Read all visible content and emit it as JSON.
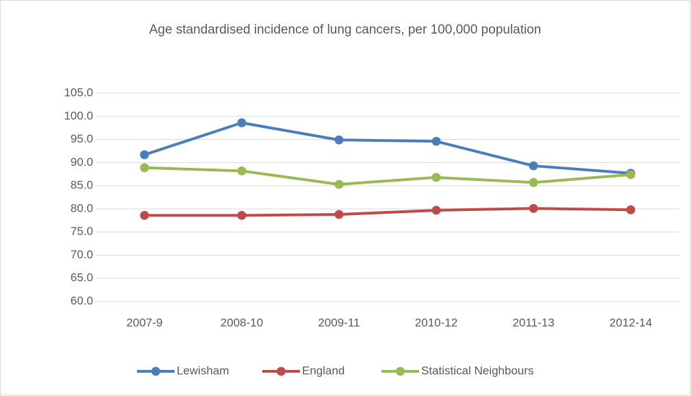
{
  "chart_data": {
    "type": "line",
    "title": "Age standardised incidence of lung cancers, per 100,000 population",
    "categories": [
      "2007-9",
      "2008-10",
      "2009-11",
      "2010-12",
      "2011-13",
      "2012-14"
    ],
    "series": [
      {
        "name": "Lewisham",
        "color": "#4a7ebb",
        "values": [
          91.7,
          98.6,
          94.9,
          94.6,
          89.3,
          87.7
        ]
      },
      {
        "name": "England",
        "color": "#be4b48",
        "values": [
          78.6,
          78.6,
          78.8,
          79.7,
          80.1,
          79.8
        ]
      },
      {
        "name": "Statistical Neighbours",
        "color": "#98b954",
        "values": [
          88.9,
          88.2,
          85.3,
          86.8,
          85.7,
          87.4
        ]
      }
    ],
    "ylim": [
      60,
      105
    ],
    "yticks": [
      {
        "value": 60,
        "label": "60.0"
      },
      {
        "value": 65,
        "label": "65.0"
      },
      {
        "value": 70,
        "label": "70.0"
      },
      {
        "value": 75,
        "label": "75.0"
      },
      {
        "value": 80,
        "label": "80.0"
      },
      {
        "value": 85,
        "label": "85.0"
      },
      {
        "value": 90,
        "label": "90.0"
      },
      {
        "value": 95,
        "label": "95.0"
      },
      {
        "value": 100,
        "label": "100.0"
      },
      {
        "value": 105,
        "label": "105.0"
      }
    ],
    "grid": true,
    "legend": "bottom"
  }
}
